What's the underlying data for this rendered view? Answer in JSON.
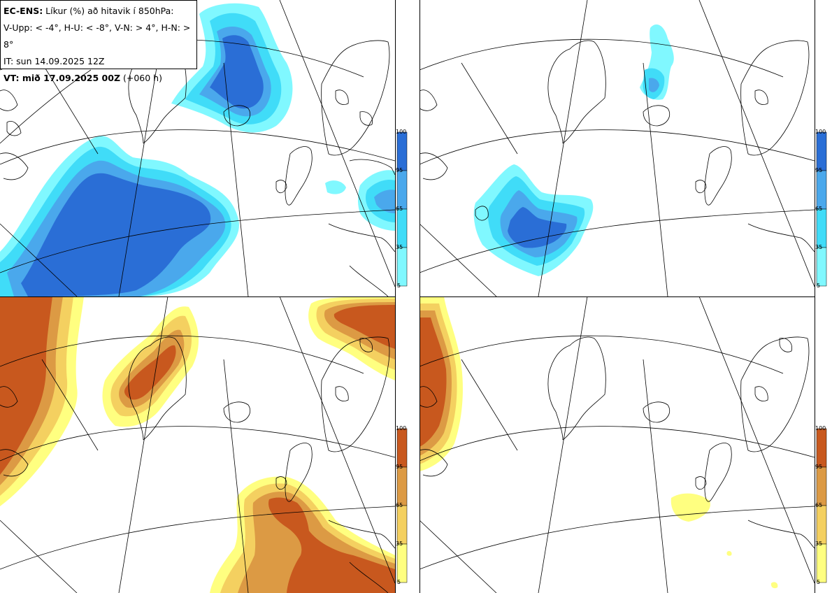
{
  "header": {
    "line1_bold": "EC-ENS:",
    "line1_rest": " Líkur (%) að hitavik í 850hPa:",
    "line2": "V-Upp: < -4°, H-U: < -8°, V-N: > 4°, H-N: > 8°",
    "line3": "IT: sun 14.09.2025 12Z",
    "line4_bold": "VT: mið 17.09.2025 00Z",
    "line4_rest": " (+060 h)"
  },
  "colorbar_levels": [
    "5",
    "35",
    "65",
    "95",
    "100"
  ],
  "colors": {
    "cold": [
      "#80f8ff",
      "#40dcf8",
      "#4aa8ec",
      "#2a6ed6"
    ],
    "warm": [
      "#ffff80",
      "#f4d060",
      "#dc9a44",
      "#c8581e"
    ],
    "coast": "#000000",
    "grid": "#000000"
  },
  "panels": [
    {
      "id": "top-left",
      "variable": "cold < -4°"
    },
    {
      "id": "top-right",
      "variable": "cold < -8°"
    },
    {
      "id": "bottom-left",
      "variable": "warm > 4°"
    },
    {
      "id": "bottom-right",
      "variable": "warm > 8°"
    }
  ]
}
